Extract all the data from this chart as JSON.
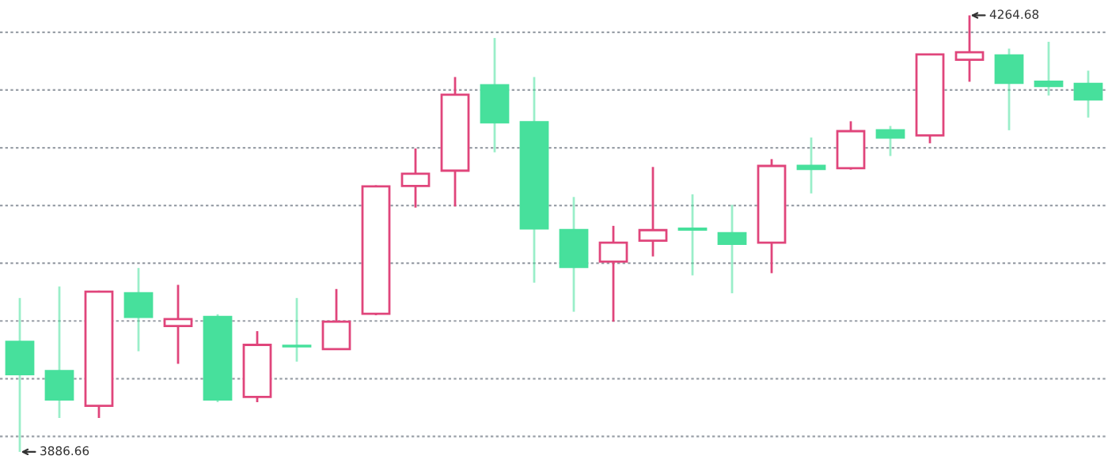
{
  "chart_data": {
    "type": "candlestick",
    "categories": [
      null,
      null,
      null,
      null,
      null,
      null,
      null,
      null,
      null,
      null,
      null,
      null,
      null,
      null,
      null,
      null,
      null,
      null,
      null,
      null,
      null,
      null,
      null,
      null,
      null,
      null,
      null,
      null
    ],
    "ohlc": [
      [
        3982.0,
        4019.9,
        3886.66,
        3953.9
      ],
      [
        3956.6,
        4029.9,
        3916.0,
        3932.0
      ],
      [
        3926.5,
        4026.3,
        3916.0,
        4025.4
      ],
      [
        4024.0,
        4045.9,
        3973.8,
        4003.5
      ],
      [
        3995.7,
        4031.3,
        3962.9,
        4001.7
      ],
      [
        4003.5,
        4005.8,
        3929.7,
        3932.0
      ],
      [
        3934.2,
        3991.2,
        3929.7,
        3979.3
      ],
      [
        3978.5,
        4019.9,
        3964.8,
        3978.0
      ],
      [
        3975.7,
        4027.7,
        3975.7,
        3999.4
      ],
      [
        4006.2,
        4117.5,
        4005.0,
        4116.6
      ],
      [
        4117.0,
        4149.4,
        4098.2,
        4127.5
      ],
      [
        4130.2,
        4211.3,
        4099.2,
        4195.9
      ],
      [
        4204.1,
        4245.1,
        4146.1,
        4172.1
      ],
      [
        4172.1,
        4211.3,
        4033.2,
        4080.1
      ],
      [
        4078.7,
        4107.4,
        4008.0,
        4046.8
      ],
      [
        4051.4,
        4082.4,
        3999.4,
        4067.8
      ],
      [
        4069.5,
        4133.4,
        4055.9,
        4078.7
      ],
      [
        4080.0,
        4109.7,
        4039.5,
        4079.2
      ],
      [
        4076.0,
        4100.6,
        4024.0,
        4066.8
      ],
      [
        4067.8,
        4140.2,
        4041.4,
        4134.3
      ],
      [
        4134.3,
        4158.9,
        4110.5,
        4131.6
      ],
      [
        4132.4,
        4173.0,
        4131.1,
        4164.4
      ],
      [
        4165.2,
        4168.9,
        4142.9,
        4158.9
      ],
      [
        4160.7,
        4231.5,
        4153.9,
        4230.9
      ],
      [
        4226.3,
        4264.68,
        4207.2,
        4232.8
      ],
      [
        4230.0,
        4235.9,
        4165.2,
        4206.2
      ],
      [
        4207.2,
        4241.8,
        4195.3,
        4203.5
      ],
      [
        4205.4,
        4216.8,
        4176.2,
        4191.8
      ]
    ],
    "colors": [
      "#47e09c",
      "#47e09c",
      "#e0457b",
      "#47e09c",
      "#e0457b",
      "#47e09c",
      "#e0457b",
      "#47e09c",
      "#e0457b",
      "#e0457b",
      "#e0457b",
      "#e0457b",
      "#47e09c",
      "#47e09c",
      "#47e09c",
      "#e0457b",
      "#e0457b",
      "#47e09c",
      "#47e09c",
      "#e0457b",
      "#47e09c",
      "#e0457b",
      "#47e09c",
      "#e0457b",
      "#e0457b",
      "#47e09c",
      "#47e09c",
      "#47e09c"
    ],
    "ylim": [
      3877,
      4278
    ],
    "yticks": [
      {
        "value": 3900,
        "label": null
      },
      {
        "value": 3950,
        "label": null
      },
      {
        "value": 4000,
        "label": null
      },
      {
        "value": 4050,
        "label": null
      },
      {
        "value": 4100,
        "label": null
      },
      {
        "value": 4150,
        "label": null
      },
      {
        "value": 4200,
        "label": null
      },
      {
        "value": 4250,
        "label": null
      }
    ],
    "grid": "y",
    "annotations": [
      "4264.68",
      "3886.66"
    ]
  }
}
